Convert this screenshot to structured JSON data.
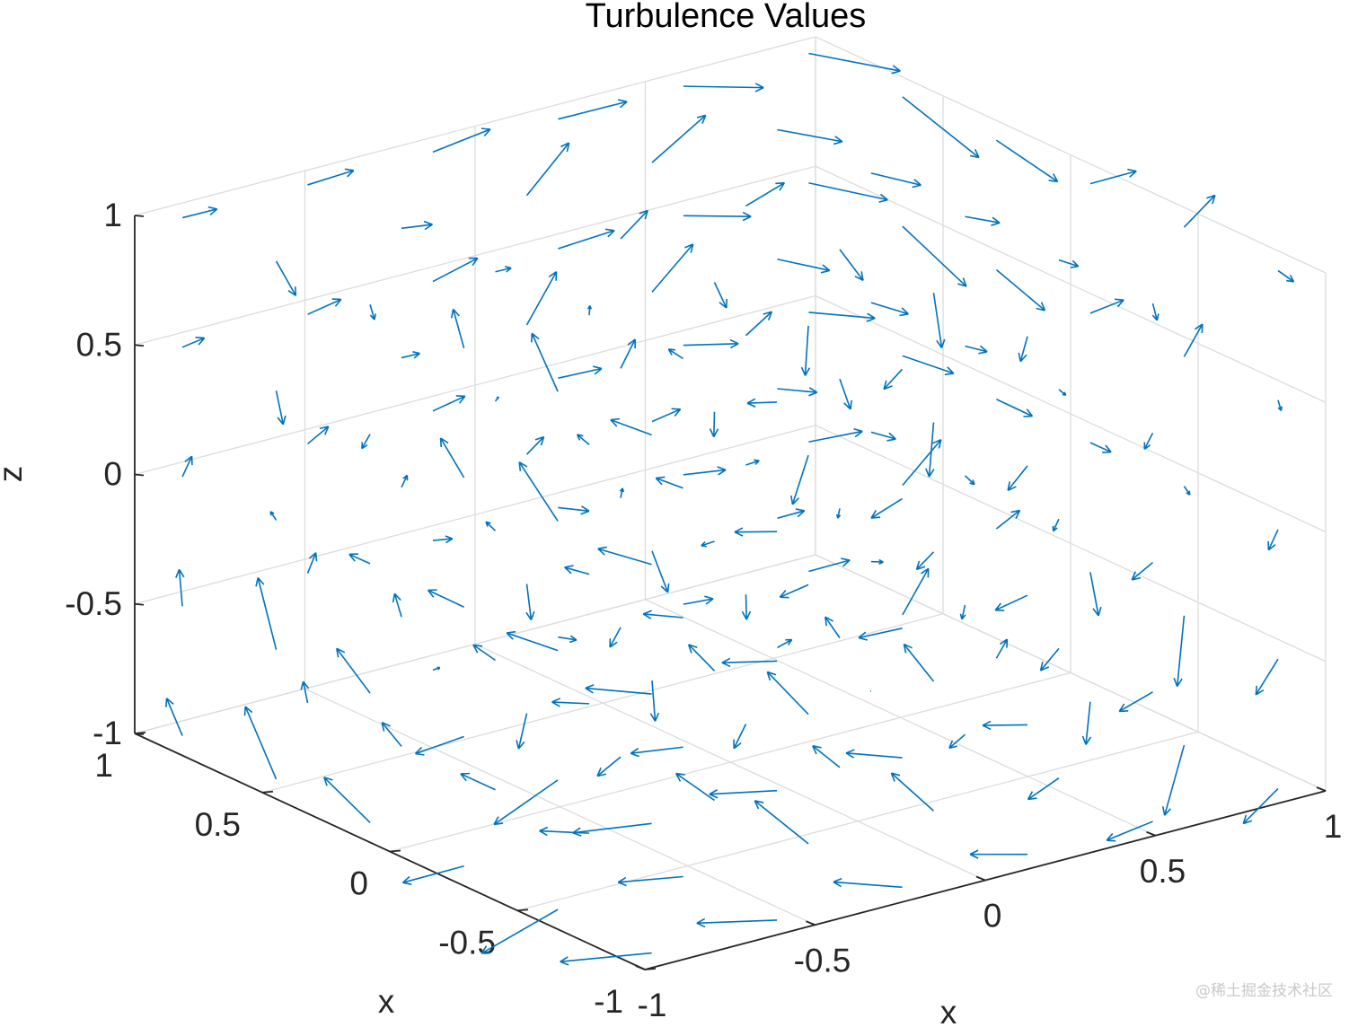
{
  "chart_data": {
    "type": "quiver3",
    "title": "Turbulence Values",
    "xlabel": "x",
    "ylabel": "x",
    "zlabel": "z",
    "xlim": [
      -1,
      1
    ],
    "ylim": [
      -1,
      1
    ],
    "zlim": [
      -1,
      1
    ],
    "xticks": [
      "-1",
      "-0.5",
      "0",
      "0.5",
      "1"
    ],
    "yticks": [
      "-1",
      "-0.5",
      "0",
      "0.5",
      "1"
    ],
    "zticks": [
      "-1",
      "-0.5",
      "0",
      "0.5",
      "1"
    ],
    "grid": true,
    "box": "back-planes",
    "arrow_color": "#0072BD",
    "field_grid": {
      "x": [
        -1,
        -0.6,
        -0.2,
        0.2,
        0.6,
        1
      ],
      "y": [
        -1,
        -0.6,
        -0.2,
        0.2,
        0.6,
        1
      ],
      "z": [
        -1,
        -0.5,
        0,
        0.5,
        1
      ]
    },
    "field": "vortex: u = -(y + 0.35*z), v = (x + 0.35*z), w = sin(pi*x)*cos(pi*y)*0.6*(|z|>0.3 ? sign(z) : 0.2)"
  },
  "watermark": "@稀土掘金技术社区"
}
